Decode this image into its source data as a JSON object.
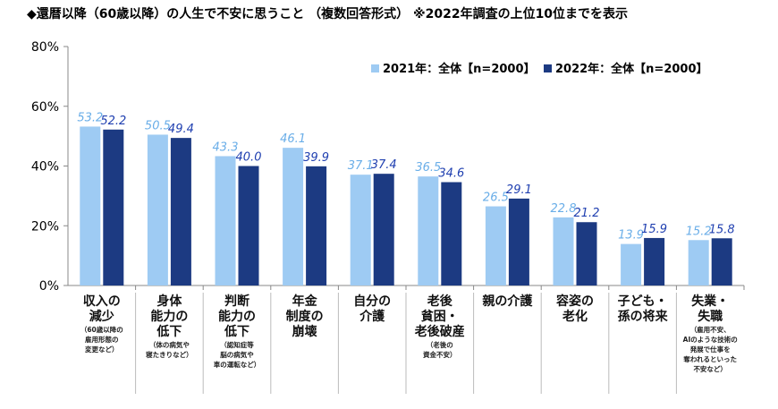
{
  "chart_data": {
    "type": "bar",
    "title": "◆還暦以降（60歳以降）の人生で不安に思うこと （複数回答形式） ※2022年調査の上位10位までを表示",
    "categories": [
      {
        "main": [
          "収入の",
          "減少"
        ],
        "sub": [
          "（60歳以降の",
          "雇用形態の",
          "変更など）"
        ]
      },
      {
        "main": [
          "身体",
          "能力の",
          "低下"
        ],
        "sub": [
          "（体の病気や",
          "寝たきりなど）"
        ]
      },
      {
        "main": [
          "判断",
          "能力の",
          "低下"
        ],
        "sub": [
          "（認知症等",
          "脳の病気や",
          "車の運転など）"
        ]
      },
      {
        "main": [
          "年金",
          "制度の",
          "崩壊"
        ],
        "sub": []
      },
      {
        "main": [
          "自分の",
          "介護"
        ],
        "sub": []
      },
      {
        "main": [
          "老後",
          "貧困・",
          "老後破産"
        ],
        "sub": [
          "（老後の",
          "資金不安）"
        ]
      },
      {
        "main": [
          "親の介護"
        ],
        "sub": []
      },
      {
        "main": [
          "容姿の",
          "老化"
        ],
        "sub": []
      },
      {
        "main": [
          "子ども・",
          "孫の将来"
        ],
        "sub": []
      },
      {
        "main": [
          "失業・",
          "失職"
        ],
        "sub": [
          "（雇用不安、",
          "AIのような技術の",
          "発展で仕事を",
          "奪われるといった",
          "不安など）"
        ]
      }
    ],
    "series": [
      {
        "name": "2021年：全体【n=2000】",
        "color": "#9ecbf3",
        "label_color": "#6aaee8",
        "values": [
          53.2,
          50.5,
          43.3,
          46.1,
          37.1,
          36.5,
          26.5,
          22.8,
          13.9,
          15.2
        ]
      },
      {
        "name": "2022年：全体【n=2000】",
        "color": "#1c3a82",
        "label_color": "#1f3fb0",
        "values": [
          52.2,
          49.4,
          40.0,
          39.9,
          37.4,
          34.6,
          29.1,
          21.2,
          15.9,
          15.8
        ]
      }
    ],
    "yticks": [
      "0%",
      "20%",
      "40%",
      "60%",
      "80%"
    ],
    "ylim": [
      0,
      80
    ],
    "legend": "top-right",
    "grid": false
  }
}
